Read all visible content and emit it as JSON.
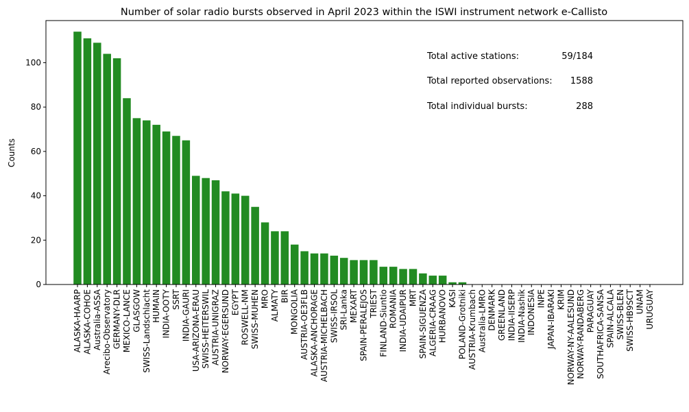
{
  "chart_data": {
    "type": "bar",
    "title": "Number of solar radio bursts observed in April 2023 within the ISWI instrument network e-Callisto",
    "xlabel": "",
    "ylabel": "Counts",
    "ylim": [
      0,
      119
    ],
    "yticks": [
      0,
      20,
      40,
      60,
      80,
      100
    ],
    "bar_color": "#228b22",
    "grid": false,
    "categories": [
      "ALASKA-HAARP",
      "ALASKA-COHOE",
      "Australia-ASSA",
      "Arecibo-Observatory",
      "GERMANY-DLR",
      "MEXICO-LANCE",
      "GLASGOW",
      "SWISS-Landschlacht",
      "HUMAIN",
      "INDIA-OOTY",
      "SSRT",
      "INDIA-GAURI",
      "USA-ARIZONA-ERAU",
      "SWISS-HEITERSWIL",
      "AUSTRIA-UNIGRAZ",
      "NORWAY-EGERSUND",
      "EGYPT",
      "ROSWELL-NM",
      "SWISS-MUHEN",
      "MRO",
      "ALMATY",
      "BIR",
      "MONGOLIA",
      "AUSTRIA-OE3FLB",
      "ALASKA-ANCHORAGE",
      "AUSTRIA-MICHELBACH",
      "SWISS-IRSOL",
      "SRI-Lanka",
      "MEXART",
      "SPAIN-PERALEJOS",
      "TRIEST",
      "FINLAND-Siuntio",
      "ROMANIA",
      "INDIA-UDAIPUR",
      "MRT",
      "SPAIN-SIGUENZA",
      "ALGERIA-CRAAG",
      "HURBANOVO",
      "KASI",
      "POLAND-Grotniki",
      "AUSTRIA-Krumbach",
      "Australia-LMRO",
      "DENMARK",
      "GREENLAND",
      "INDIA-IISERP",
      "INDIA-Nashik",
      "INDONESIA",
      "INPE",
      "JAPAN-IBARAKI",
      "KRIM",
      "NORWAY-NY-AALESUND",
      "NORWAY-RANDABERG",
      "PARAGUAY",
      "SOUTHAFRICA-SANSA",
      "SPAIN-ALCALA",
      "SWISS-BLEN",
      "SWISS-HB9SCT",
      "UNAM",
      "URUGUAY"
    ],
    "values": [
      114,
      111,
      109,
      104,
      102,
      84,
      75,
      74,
      72,
      69,
      67,
      65,
      49,
      48,
      47,
      42,
      41,
      40,
      35,
      28,
      24,
      24,
      18,
      15,
      14,
      14,
      13,
      12,
      11,
      11,
      11,
      8,
      8,
      7,
      7,
      5,
      4,
      4,
      1,
      1,
      0,
      0,
      0,
      0,
      0,
      0,
      0,
      0,
      0,
      0,
      0,
      0,
      0,
      0,
      0,
      0,
      0,
      0,
      0
    ],
    "annotations": [
      {
        "label": "Total active stations:",
        "value": "59/184"
      },
      {
        "label": "Total reported observations:",
        "value": "1588"
      },
      {
        "label": "Total individual bursts:",
        "value": "288"
      }
    ]
  }
}
